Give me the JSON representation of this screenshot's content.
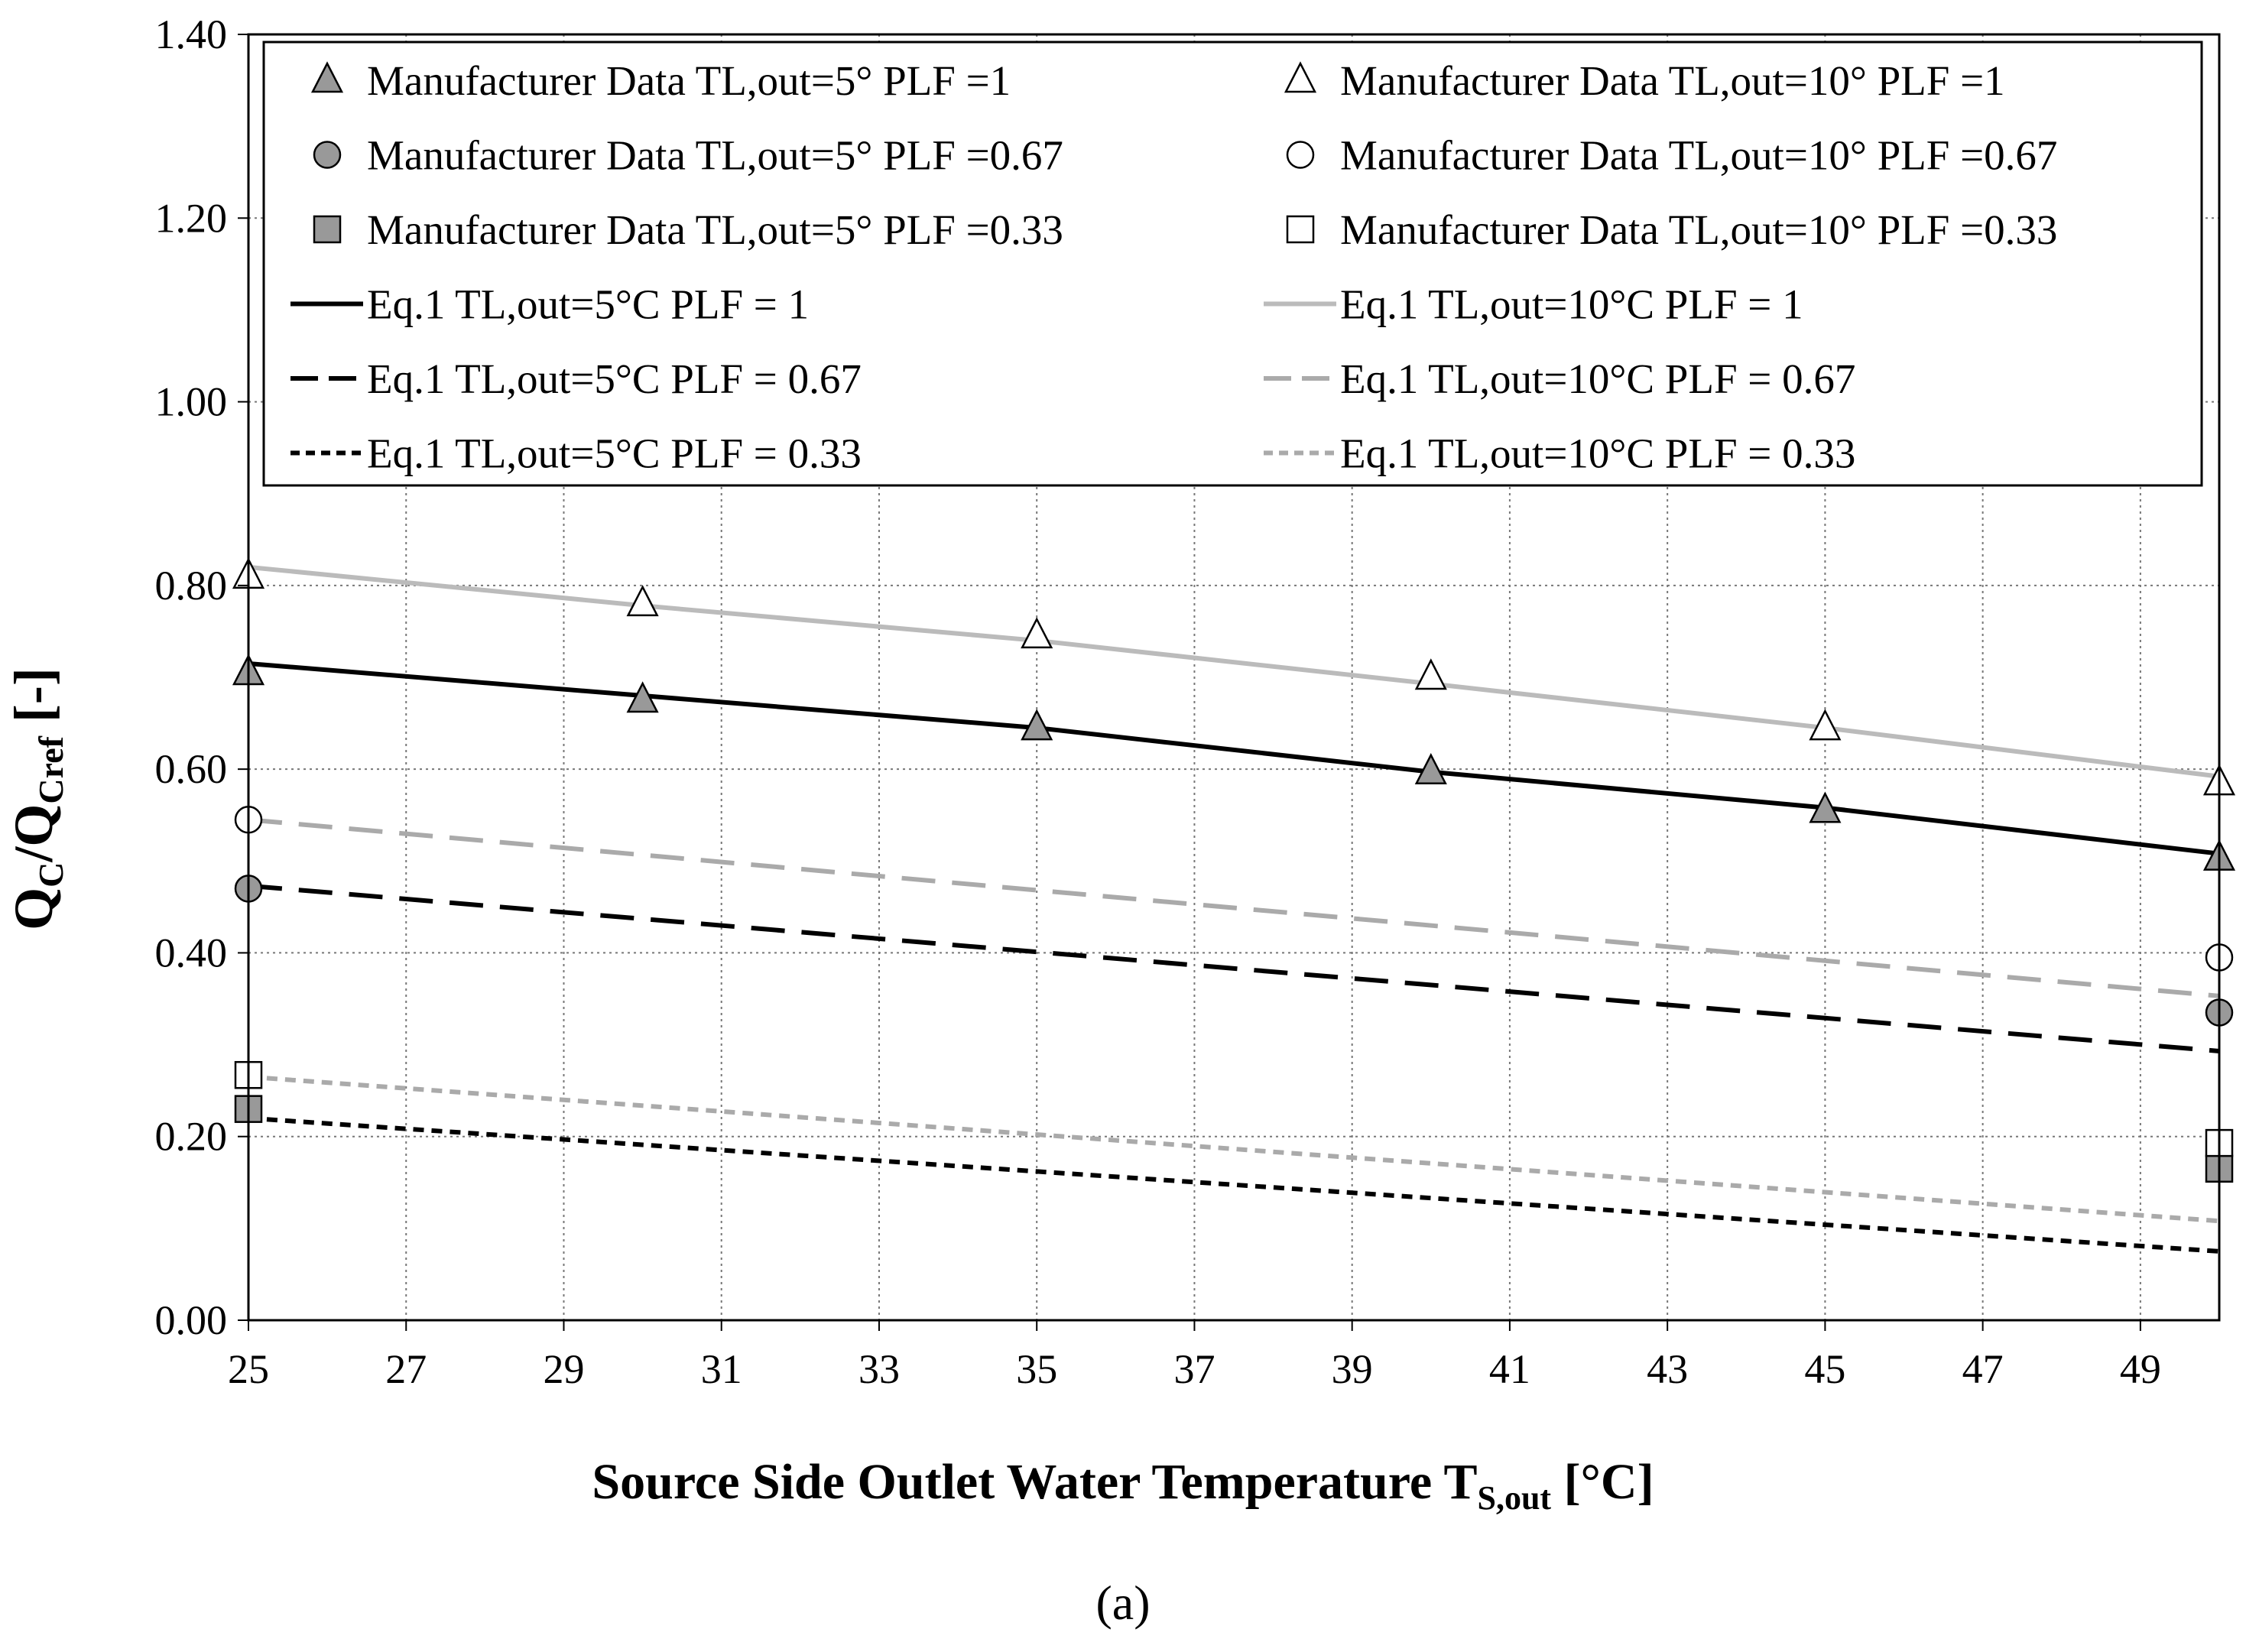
{
  "chart_data": {
    "type": "line",
    "panel_label": "(a)",
    "xlabel": {
      "main": "Source Side Outlet Water Temperature T",
      "sub": "S,out",
      "unit": " [°C]"
    },
    "ylabel": {
      "q1": "Q",
      "s1": "C",
      "slash": "/Q",
      "s2": "Cref",
      "unit": " [-]"
    },
    "xlim": [
      25,
      50
    ],
    "ylim": [
      0,
      1.4
    ],
    "x_ticks": [
      25,
      27,
      29,
      31,
      33,
      35,
      37,
      39,
      41,
      43,
      45,
      47,
      49
    ],
    "y_ticks": [
      "0.00",
      "0.20",
      "0.40",
      "0.60",
      "0.80",
      "1.00",
      "1.20",
      "1.40"
    ],
    "grid": "dotted",
    "legend_position": "top",
    "colors": {
      "black": "#000000",
      "dark_gray": "#999999",
      "light_gray": "#bbbbbb",
      "white": "#ffffff"
    },
    "marker_series": [
      {
        "name": "Manufacturer Data TL,out=5° PLF =1",
        "marker": "triangle",
        "fill": "#999999",
        "x": [
          25,
          30,
          35,
          40,
          45,
          50
        ],
        "y": [
          0.705,
          0.675,
          0.645,
          0.597,
          0.555,
          0.503
        ]
      },
      {
        "name": "Manufacturer Data TL,out=5° PLF =0.67",
        "marker": "circle",
        "fill": "#999999",
        "x": [
          25,
          50
        ],
        "y": [
          0.47,
          0.335
        ]
      },
      {
        "name": "Manufacturer Data TL,out=5° PLF =0.33",
        "marker": "square",
        "fill": "#999999",
        "x": [
          25,
          50
        ],
        "y": [
          0.23,
          0.165
        ]
      },
      {
        "name": "Manufacturer Data TL,out=10° PLF =1",
        "marker": "triangle",
        "fill": "#ffffff",
        "x": [
          25,
          30,
          35,
          40,
          45,
          50
        ],
        "y": [
          0.81,
          0.78,
          0.745,
          0.7,
          0.645,
          0.585
        ]
      },
      {
        "name": "Manufacturer Data TL,out=10° PLF =0.67",
        "marker": "circle",
        "fill": "#ffffff",
        "x": [
          25,
          50
        ],
        "y": [
          0.545,
          0.395
        ]
      },
      {
        "name": "Manufacturer Data TL,out=10° PLF =0.33",
        "marker": "square",
        "fill": "#ffffff",
        "x": [
          25,
          50
        ],
        "y": [
          0.267,
          0.193
        ]
      }
    ],
    "line_series": [
      {
        "name": "Eq.1 TL,out=5°C PLF = 1",
        "color": "#000000",
        "dash": "solid",
        "x": [
          25,
          30,
          35,
          40,
          45,
          50
        ],
        "y": [
          0.715,
          0.68,
          0.645,
          0.597,
          0.558,
          0.508
        ]
      },
      {
        "name": "Eq.1 TL,out=5°C PLF = 0.67",
        "color": "#000000",
        "dash": "long",
        "x": [
          25,
          50
        ],
        "y": [
          0.473,
          0.293
        ]
      },
      {
        "name": "Eq.1 TL,out=5°C PLF = 0.33",
        "color": "#000000",
        "dash": "short",
        "x": [
          25,
          50
        ],
        "y": [
          0.22,
          0.075
        ]
      },
      {
        "name": "Eq.1 TL,out=10°C PLF = 1",
        "color": "#bbbbbb",
        "dash": "solid",
        "x": [
          25,
          30,
          35,
          40,
          45,
          50
        ],
        "y": [
          0.82,
          0.778,
          0.74,
          0.693,
          0.645,
          0.592
        ]
      },
      {
        "name": "Eq.1 TL,out=10°C PLF = 0.67",
        "color": "#aaaaaa",
        "dash": "long",
        "x": [
          25,
          50
        ],
        "y": [
          0.545,
          0.353
        ]
      },
      {
        "name": "Eq.1 TL,out=10°C PLF = 0.33",
        "color": "#aaaaaa",
        "dash": "short",
        "x": [
          25,
          50
        ],
        "y": [
          0.265,
          0.108
        ]
      }
    ],
    "legend_order": [
      [
        "m",
        0
      ],
      [
        "m",
        3
      ],
      [
        "m",
        1
      ],
      [
        "m",
        4
      ],
      [
        "m",
        2
      ],
      [
        "m",
        5
      ],
      [
        "l",
        0
      ],
      [
        "l",
        3
      ],
      [
        "l",
        1
      ],
      [
        "l",
        4
      ],
      [
        "l",
        2
      ],
      [
        "l",
        5
      ]
    ]
  }
}
